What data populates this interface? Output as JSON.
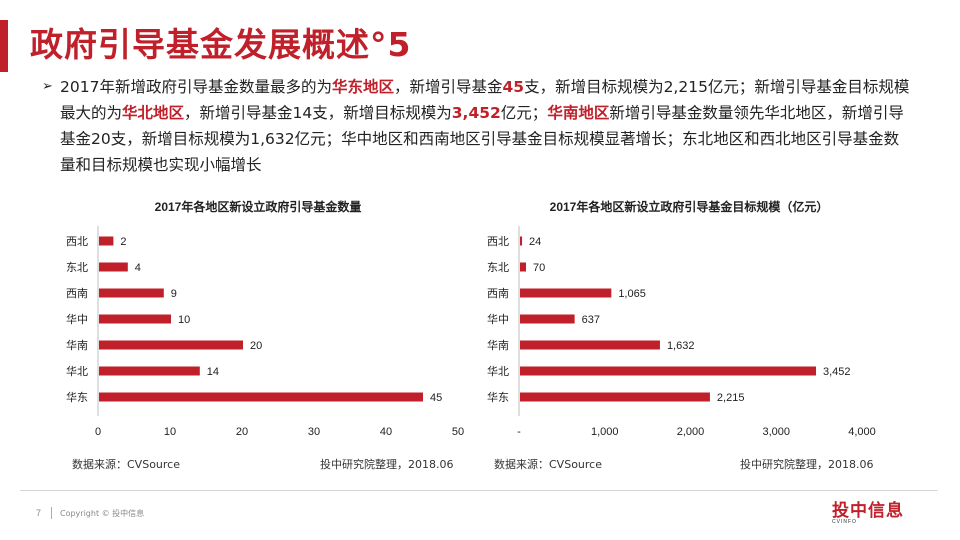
{
  "header": {
    "title": "政府引导基金发展概述°5"
  },
  "summary": {
    "bullet_icon": "arrow-right-icon",
    "segments": [
      {
        "text": "2017年新增政府引导基金数量最多的为",
        "bold": false
      },
      {
        "text": "华东地区",
        "bold": true
      },
      {
        "text": "，新增引导基金",
        "bold": false
      },
      {
        "text": "45",
        "bold": true
      },
      {
        "text": "支，新增目标规模为2,215亿元；新增引导基金目标规模最大的为",
        "bold": false
      },
      {
        "text": "华北地区",
        "bold": true
      },
      {
        "text": "，新增引导基金14支，新增目标规模为",
        "bold": false
      },
      {
        "text": "3,452",
        "bold": true
      },
      {
        "text": "亿元；",
        "bold": false
      },
      {
        "text": "华南地区",
        "bold": true
      },
      {
        "text": "新增引导基金数量领先华北地区，新增引导基金20支，新增目标规模为1,632亿元；华中地区和西南地区引导基金目标规模显著增长；东北地区和西北地区引导基金数量和目标规模也实现小幅增长",
        "bold": false
      }
    ]
  },
  "chart_data": [
    {
      "type": "bar",
      "orientation": "horizontal",
      "title": "2017年各地区新设立政府引导基金数量",
      "categories": [
        "西北",
        "东北",
        "西南",
        "华中",
        "华南",
        "华北",
        "华东"
      ],
      "values": [
        2,
        4,
        9,
        10,
        20,
        14,
        45
      ],
      "value_labels": [
        "2",
        "4",
        "9",
        "10",
        "20",
        "14",
        "45"
      ],
      "xlim": [
        0,
        50
      ],
      "ticks": [
        0,
        10,
        20,
        30,
        40,
        50
      ],
      "tick_labels": [
        "0",
        "10",
        "20",
        "30",
        "40",
        "50"
      ],
      "bar_color": "#c0202a",
      "grid": false
    },
    {
      "type": "bar",
      "orientation": "horizontal",
      "title": "2017年各地区新设立政府引导基金目标规模（亿元）",
      "categories": [
        "西北",
        "东北",
        "西南",
        "华中",
        "华南",
        "华北",
        "华东"
      ],
      "values": [
        24,
        70,
        1065,
        637,
        1632,
        3452,
        2215
      ],
      "value_labels": [
        "24",
        "70",
        "1,065",
        "637",
        "1,632",
        "3,452",
        "2,215"
      ],
      "xlim": [
        0,
        4000
      ],
      "ticks": [
        0,
        1000,
        2000,
        3000,
        4000
      ],
      "tick_labels": [
        "-",
        "1,000",
        "2,000",
        "3,000",
        "4,000"
      ],
      "bar_color": "#c0202a",
      "grid": false
    }
  ],
  "sources": {
    "left_source": "数据来源：CVSource",
    "left_note": "投中研究院整理，2018.06",
    "right_source": "数据来源：CVSource",
    "right_note": "投中研究院整理，2018.06"
  },
  "divider_colors": {
    "accent": "#e8141c",
    "dark": "#111111"
  },
  "footer": {
    "page_number": "7",
    "copyright": "Copyright © 投中信息",
    "logo_main": "投中信息",
    "logo_sub": "CVINFO"
  }
}
